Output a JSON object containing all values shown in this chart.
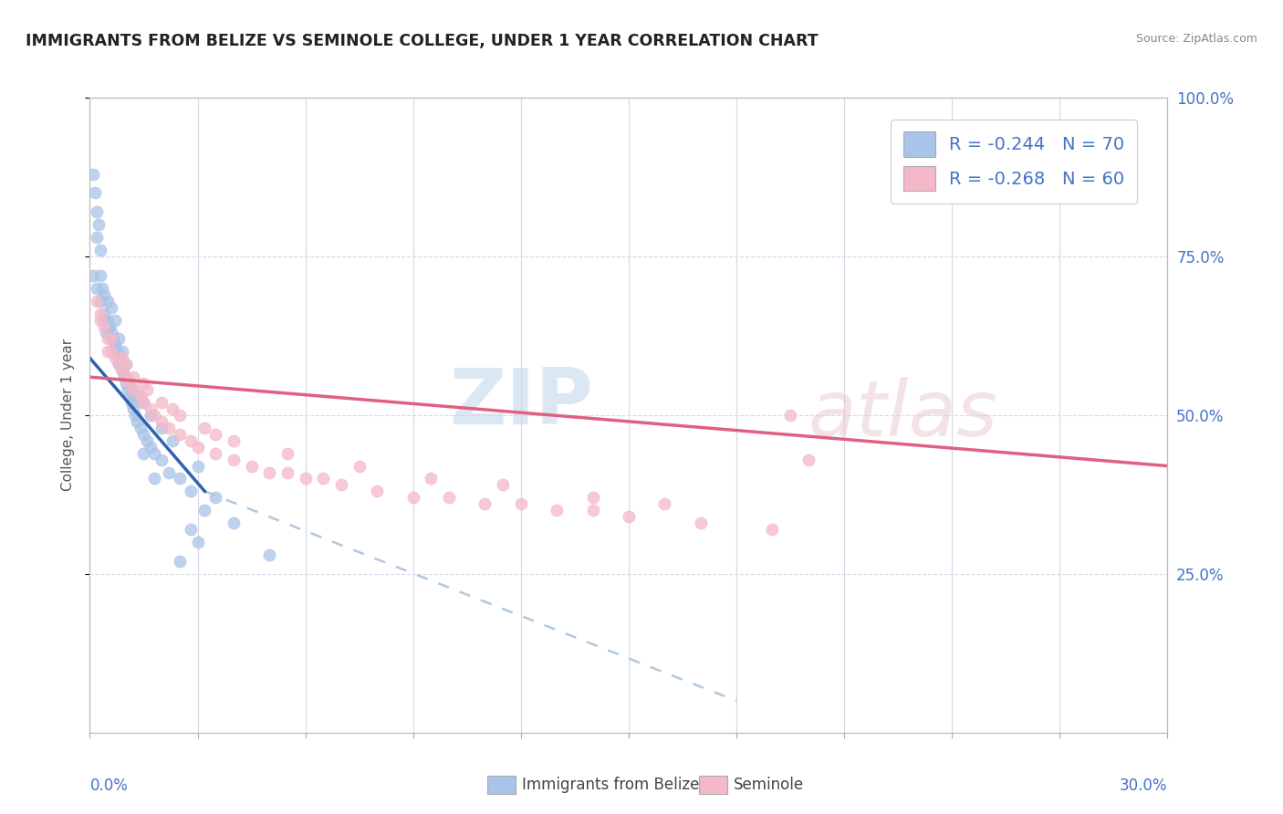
{
  "title": "IMMIGRANTS FROM BELIZE VS SEMINOLE COLLEGE, UNDER 1 YEAR CORRELATION CHART",
  "source": "Source: ZipAtlas.com",
  "ylabel": "College, Under 1 year",
  "legend_entry1": "R = -0.244   N = 70",
  "legend_entry2": "R = -0.268   N = 60",
  "legend_label1": "Immigrants from Belize",
  "legend_label2": "Seminole",
  "color_blue": "#a8c4e8",
  "color_pink": "#f5b8c8",
  "color_blue_line": "#3060b0",
  "color_pink_line": "#e06080",
  "color_dashed": "#b0c8e0",
  "watermark_zip": "ZIP",
  "watermark_atlas": "atlas",
  "xlim": [
    0.0,
    30.0
  ],
  "ylim": [
    0.0,
    100.0
  ],
  "grid_color": "#d8d8e8",
  "background_color": "#ffffff",
  "blue_x": [
    0.1,
    0.15,
    0.2,
    0.2,
    0.25,
    0.3,
    0.3,
    0.35,
    0.4,
    0.4,
    0.5,
    0.5,
    0.55,
    0.6,
    0.6,
    0.65,
    0.7,
    0.7,
    0.75,
    0.8,
    0.8,
    0.85,
    0.9,
    0.9,
    0.95,
    1.0,
    1.0,
    1.05,
    1.1,
    1.15,
    1.2,
    1.25,
    1.3,
    1.4,
    1.5,
    1.6,
    1.7,
    1.8,
    2.0,
    2.2,
    2.5,
    2.8,
    3.2,
    0.1,
    0.2,
    0.3,
    0.4,
    0.5,
    0.6,
    0.7,
    0.8,
    0.9,
    1.0,
    1.1,
    1.2,
    1.3,
    1.5,
    1.7,
    2.0,
    2.3,
    3.0,
    3.5,
    4.0,
    5.0,
    3.0,
    2.5,
    2.8,
    1.5,
    1.8,
    0.45
  ],
  "blue_y": [
    88,
    85,
    82,
    78,
    80,
    76,
    72,
    70,
    69,
    66,
    65,
    68,
    64,
    63,
    67,
    62,
    61,
    65,
    60,
    59,
    62,
    58,
    57,
    60,
    56,
    55,
    58,
    54,
    53,
    52,
    51,
    50,
    49,
    48,
    47,
    46,
    45,
    44,
    43,
    41,
    40,
    38,
    35,
    72,
    70,
    68,
    65,
    64,
    62,
    60,
    58,
    57,
    56,
    55,
    54,
    53,
    52,
    50,
    48,
    46,
    42,
    37,
    33,
    28,
    30,
    27,
    32,
    44,
    40,
    63
  ],
  "pink_x": [
    0.2,
    0.3,
    0.4,
    0.5,
    0.6,
    0.7,
    0.8,
    0.9,
    1.0,
    1.1,
    1.2,
    1.4,
    1.5,
    1.7,
    1.8,
    2.0,
    2.2,
    2.5,
    2.8,
    3.0,
    3.5,
    4.0,
    4.5,
    5.0,
    5.5,
    6.0,
    6.5,
    7.0,
    8.0,
    9.0,
    10.0,
    11.0,
    12.0,
    13.0,
    14.0,
    15.0,
    17.0,
    19.0,
    20.0,
    0.3,
    0.6,
    0.9,
    1.2,
    1.6,
    2.0,
    2.5,
    3.2,
    4.0,
    5.5,
    7.5,
    9.5,
    11.5,
    14.0,
    16.0,
    0.5,
    1.0,
    1.5,
    2.3,
    3.5,
    19.5
  ],
  "pink_y": [
    68,
    66,
    64,
    62,
    60,
    59,
    58,
    57,
    56,
    55,
    54,
    53,
    52,
    51,
    50,
    49,
    48,
    47,
    46,
    45,
    44,
    43,
    42,
    41,
    41,
    40,
    40,
    39,
    38,
    37,
    37,
    36,
    36,
    35,
    35,
    34,
    33,
    32,
    43,
    65,
    62,
    59,
    56,
    54,
    52,
    50,
    48,
    46,
    44,
    42,
    40,
    39,
    37,
    36,
    60,
    58,
    55,
    51,
    47,
    50
  ],
  "blue_line_x0": 0.0,
  "blue_line_x1": 3.2,
  "blue_line_y0": 59.0,
  "blue_line_y1": 38.0,
  "blue_dash_x0": 3.2,
  "blue_dash_x1": 18.0,
  "blue_dash_y0": 38.0,
  "blue_dash_y1": 5.0,
  "pink_line_x0": 0.0,
  "pink_line_x1": 30.0,
  "pink_line_y0": 56.0,
  "pink_line_y1": 42.0
}
